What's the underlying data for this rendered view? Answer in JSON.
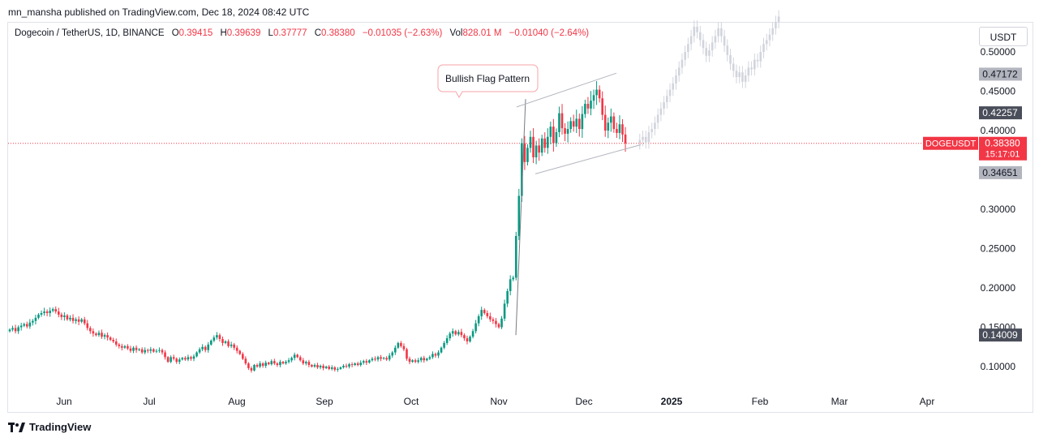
{
  "header": {
    "published": "mn_mansha published on TradingView.com, Dec 18, 2024 08:42 UTC"
  },
  "legend": {
    "symbol": "Dogecoin / TetherUS, 1D, BINANCE",
    "o_label": "O",
    "o_value": "0.39415",
    "h_label": "H",
    "h_value": "0.39639",
    "l_label": "L",
    "l_value": "0.37777",
    "c_label": "C",
    "c_value": "0.38380",
    "change": "−0.01035 (−2.63%)",
    "vol_label": "Vol",
    "vol_value": "828.01 M",
    "vol_change": "−0.01040 (−2.64%)"
  },
  "currency_button": "USDT",
  "footer": {
    "brand": "TradingView"
  },
  "colors": {
    "up": "#089981",
    "down": "#f23645",
    "ghost": "#d1d4dc",
    "price_line": "#f23645"
  },
  "chart_data": {
    "type": "candlestick",
    "symbol": "DOGEUSDT",
    "interval": "1D",
    "ylim": [
      0.065,
      0.545
    ],
    "y_ticks": [
      "0.10000",
      "0.15000",
      "0.20000",
      "0.25000",
      "0.30000",
      "0.35000",
      "0.40000",
      "0.45000",
      "0.50000"
    ],
    "x_ticks": [
      "Jun",
      "Jul",
      "Aug",
      "Sep",
      "Oct",
      "Nov",
      "Dec",
      "2025",
      "Feb",
      "Mar",
      "Apr"
    ],
    "x_ticks_bold": "2025",
    "price_labels": [
      {
        "text": "0.47172",
        "value": 0.47172,
        "style": "gray"
      },
      {
        "text": "0.42257",
        "value": 0.42257,
        "style": "dark"
      },
      {
        "text": "0.34651",
        "value": 0.34651,
        "style": "gray"
      },
      {
        "text": "0.14009",
        "value": 0.14009,
        "style": "dark"
      }
    ],
    "current_price": {
      "symbol": "DOGEUSDT",
      "value": "0.38380",
      "price": 0.3838,
      "countdown": "15:17:01"
    },
    "annotation": {
      "text": "Bullish Flag Pattern"
    },
    "flag": {
      "pole": [
        [
          0.14,
          0.14
        ],
        [
          0.44,
          0.44
        ]
      ],
      "channel_top": [
        [
          "2024-11-12",
          0.43
        ],
        [
          "2024-12-10",
          0.473
        ]
      ],
      "channel_bottom": [
        [
          "2024-11-16",
          0.345
        ],
        [
          "2024-12-18",
          0.382
        ]
      ]
    },
    "closes": [
      0.147,
      0.149,
      0.145,
      0.15,
      0.152,
      0.154,
      0.151,
      0.156,
      0.158,
      0.162,
      0.166,
      0.168,
      0.17,
      0.168,
      0.171,
      0.173,
      0.17,
      0.166,
      0.163,
      0.165,
      0.16,
      0.162,
      0.158,
      0.16,
      0.157,
      0.16,
      0.155,
      0.149,
      0.145,
      0.142,
      0.14,
      0.143,
      0.138,
      0.14,
      0.137,
      0.134,
      0.132,
      0.128,
      0.126,
      0.124,
      0.126,
      0.123,
      0.12,
      0.124,
      0.121,
      0.122,
      0.118,
      0.121,
      0.12,
      0.122,
      0.119,
      0.12,
      0.121,
      0.118,
      0.112,
      0.106,
      0.112,
      0.11,
      0.106,
      0.109,
      0.111,
      0.109,
      0.112,
      0.11,
      0.113,
      0.118,
      0.122,
      0.125,
      0.121,
      0.128,
      0.133,
      0.137,
      0.14,
      0.135,
      0.13,
      0.132,
      0.126,
      0.128,
      0.124,
      0.12,
      0.116,
      0.11,
      0.104,
      0.098,
      0.095,
      0.102,
      0.1,
      0.104,
      0.101,
      0.105,
      0.103,
      0.107,
      0.104,
      0.102,
      0.106,
      0.104,
      0.106,
      0.108,
      0.111,
      0.115,
      0.112,
      0.108,
      0.104,
      0.106,
      0.102,
      0.1,
      0.102,
      0.099,
      0.101,
      0.098,
      0.1,
      0.097,
      0.099,
      0.096,
      0.097,
      0.099,
      0.101,
      0.1,
      0.103,
      0.102,
      0.104,
      0.102,
      0.105,
      0.107,
      0.105,
      0.108,
      0.11,
      0.109,
      0.112,
      0.11,
      0.111,
      0.109,
      0.114,
      0.118,
      0.124,
      0.13,
      0.126,
      0.122,
      0.11,
      0.106,
      0.108,
      0.106,
      0.108,
      0.111,
      0.108,
      0.11,
      0.112,
      0.116,
      0.114,
      0.118,
      0.124,
      0.13,
      0.136,
      0.142,
      0.145,
      0.141,
      0.144,
      0.14,
      0.136,
      0.132,
      0.138,
      0.145,
      0.155,
      0.164,
      0.172,
      0.168,
      0.164,
      0.16,
      0.158,
      0.154,
      0.15,
      0.161,
      0.18,
      0.196,
      0.211,
      0.213,
      0.266,
      0.317,
      0.384,
      0.36,
      0.378,
      0.392,
      0.366,
      0.381,
      0.372,
      0.39,
      0.378,
      0.392,
      0.405,
      0.384,
      0.398,
      0.422,
      0.403,
      0.396,
      0.402,
      0.412,
      0.405,
      0.415,
      0.402,
      0.421,
      0.434,
      0.428,
      0.438,
      0.445,
      0.452,
      0.441,
      0.42,
      0.4,
      0.41,
      0.418,
      0.402,
      0.397,
      0.408,
      0.395,
      0.3838
    ],
    "ghost_closes": [
      0.388,
      0.392,
      0.385,
      0.398,
      0.402,
      0.41,
      0.42,
      0.428,
      0.436,
      0.444,
      0.452,
      0.46,
      0.47,
      0.48,
      0.49,
      0.5,
      0.51,
      0.52,
      0.532,
      0.525,
      0.515,
      0.505,
      0.495,
      0.502,
      0.512,
      0.52,
      0.53,
      0.52,
      0.508,
      0.496,
      0.485,
      0.476,
      0.468,
      0.474,
      0.462,
      0.47,
      0.48,
      0.478,
      0.49,
      0.488,
      0.5,
      0.51,
      0.515,
      0.522,
      0.53,
      0.538,
      0.545
    ]
  }
}
